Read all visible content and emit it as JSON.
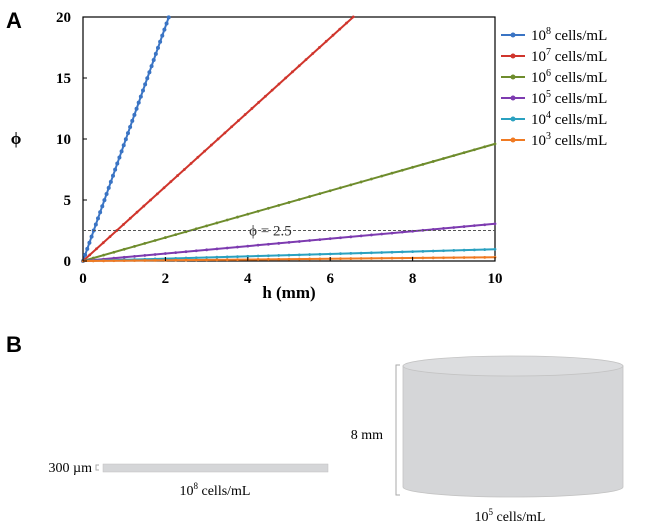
{
  "figure": {
    "panel_a_label": "A",
    "panel_b_label": "B"
  },
  "chart_data": {
    "type": "line",
    "xlabel": "h (mm)",
    "ylabel": "ϕ",
    "xlim": [
      0,
      10
    ],
    "ylim": [
      0,
      20
    ],
    "xticks": [
      0,
      2,
      4,
      6,
      8,
      10
    ],
    "yticks": [
      0,
      5,
      10,
      15,
      20
    ],
    "grid": false,
    "legend_position": "right",
    "series": [
      {
        "name": "10^8 cells/mL",
        "exp": "8",
        "unit": " cells/mL",
        "color": "#3a74c4",
        "slope": 9.6,
        "x_max": 2.08
      },
      {
        "name": "10^7 cells/mL",
        "exp": "7",
        "unit": " cells/mL",
        "color": "#d0352c",
        "slope": 3.05,
        "x_max": 6.56
      },
      {
        "name": "10^6 cells/mL",
        "exp": "6",
        "unit": " cells/mL",
        "color": "#6e8c2c",
        "slope": 0.96,
        "x_max": 10
      },
      {
        "name": "10^5 cells/mL",
        "exp": "5",
        "unit": " cells/mL",
        "color": "#7d3bb0",
        "slope": 0.305,
        "x_max": 10
      },
      {
        "name": "10^4 cells/mL",
        "exp": "4",
        "unit": " cells/mL",
        "color": "#2aa1c0",
        "slope": 0.096,
        "x_max": 10
      },
      {
        "name": "10^3 cells/mL",
        "exp": "3",
        "unit": " cells/mL",
        "color": "#f07a22",
        "slope": 0.0305,
        "x_max": 10
      }
    ],
    "annotation": {
      "text": "ϕ = 2.5",
      "y": 2.5
    }
  },
  "panel_b": {
    "thin_label": "300 µm",
    "thin_caption_base": "10",
    "thin_caption_exp": "8",
    "thin_caption_unit": " cells/mL",
    "tall_label": "8 mm",
    "tall_caption_base": "10",
    "tall_caption_exp": "5",
    "tall_caption_unit": " cells/mL",
    "fill_color": "#d5d6d8"
  }
}
